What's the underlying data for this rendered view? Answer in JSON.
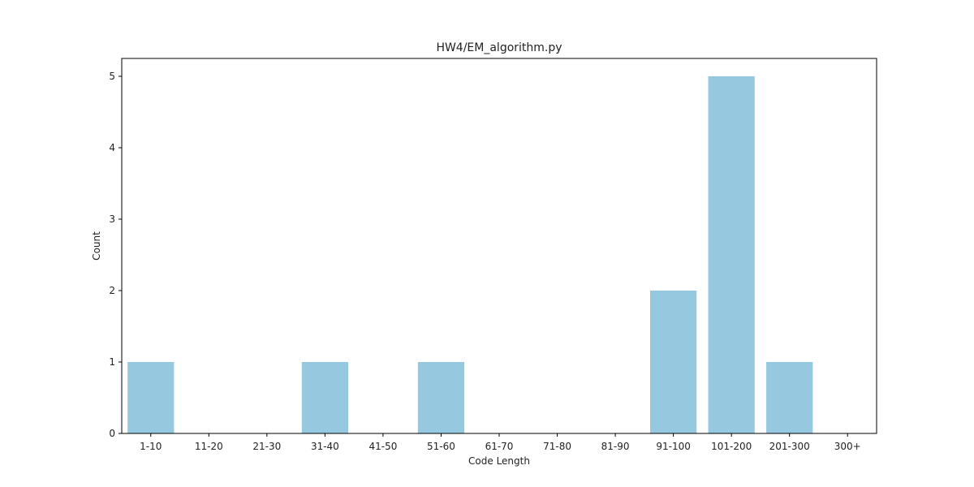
{
  "chart_data": {
    "type": "bar",
    "title": "HW4/EM_algorithm.py",
    "xlabel": "Code Length",
    "ylabel": "Count",
    "categories": [
      "1-10",
      "11-20",
      "21-30",
      "31-40",
      "41-50",
      "51-60",
      "61-70",
      "71-80",
      "81-90",
      "91-100",
      "101-200",
      "201-300",
      "300+"
    ],
    "values": [
      1,
      0,
      0,
      1,
      0,
      1,
      0,
      0,
      0,
      2,
      5,
      1,
      0
    ],
    "yticks": [
      0,
      1,
      2,
      3,
      4,
      5
    ],
    "ylim": [
      0,
      5.25
    ],
    "grid": false,
    "bar_color": "#96c9df"
  }
}
